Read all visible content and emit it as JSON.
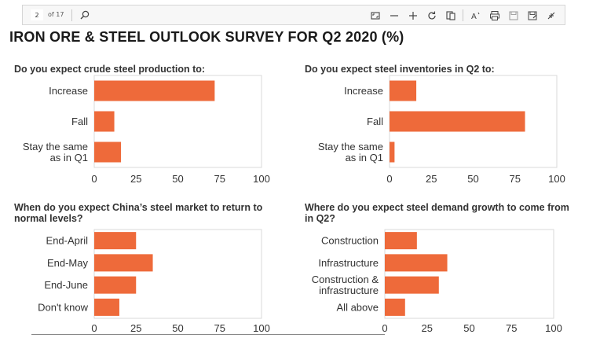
{
  "toolbar": {
    "page_number": "2",
    "page_total": "of 17",
    "icons": [
      "search-icon",
      "fit-page-icon",
      "zoom-out-icon",
      "zoom-in-icon",
      "rotate-icon",
      "page-view-icon",
      "read-aloud-icon",
      "print-icon",
      "save-icon",
      "save-as-icon",
      "collapse-icon"
    ]
  },
  "colors": {
    "bar": "#ee6a3a",
    "axis": "#9a9a9a",
    "grid": "#d9d9d9"
  },
  "title": "IRON ORE & STEEL OUTLOOK SURVEY FOR Q2 2020 (%)",
  "chart_data": [
    {
      "type": "bar",
      "orientation": "horizontal",
      "title_lines": [
        "Do you expect crude steel production to:"
      ],
      "categories": [
        [
          "Increase"
        ],
        [
          "Fall"
        ],
        [
          "Stay the same",
          "as in Q1"
        ]
      ],
      "values": [
        72,
        12,
        16
      ],
      "xlim": [
        0,
        100
      ],
      "xticks": [
        "0",
        "25",
        "50",
        "75",
        "100"
      ]
    },
    {
      "type": "bar",
      "orientation": "horizontal",
      "title_lines": [
        "Do you expect steel inventories in Q2 to:"
      ],
      "categories": [
        [
          "Increase"
        ],
        [
          "Fall"
        ],
        [
          "Stay the same",
          "as in Q1"
        ]
      ],
      "values": [
        16,
        81,
        3
      ],
      "xlim": [
        0,
        100
      ],
      "xticks": [
        "0",
        "25",
        "50",
        "75",
        "100"
      ]
    },
    {
      "type": "bar",
      "orientation": "horizontal",
      "title_lines": [
        "When do you expect China’s steel market to return to",
        "normal levels?"
      ],
      "categories": [
        [
          "End-April"
        ],
        [
          "End-May"
        ],
        [
          "End-June"
        ],
        [
          "Don't know"
        ]
      ],
      "values": [
        25,
        35,
        25,
        15
      ],
      "xlim": [
        0,
        100
      ],
      "xticks": [
        "0",
        "25",
        "50",
        "75",
        "100"
      ]
    },
    {
      "type": "bar",
      "orientation": "horizontal",
      "title_lines": [
        "Where do you expect steel demand growth to come from",
        "in Q2?"
      ],
      "categories": [
        [
          "Construction"
        ],
        [
          "Infrastructure"
        ],
        [
          "Construction &",
          "infrastructure"
        ],
        [
          "All above"
        ]
      ],
      "values": [
        19,
        37,
        32,
        12
      ],
      "xlim": [
        0,
        100
      ],
      "xticks": [
        "0",
        "25",
        "50",
        "75",
        "100"
      ]
    }
  ]
}
